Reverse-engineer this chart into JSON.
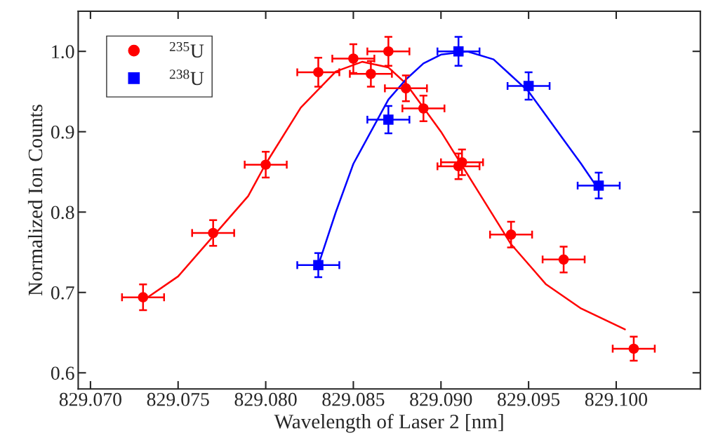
{
  "chart_data": {
    "type": "scatter",
    "xlabel": "Wavelength of Laser 2 [nm]",
    "ylabel": "Normalized Ion Counts",
    "xlim": [
      829.0693,
      829.1048
    ],
    "ylim": [
      0.58,
      1.05
    ],
    "xticks": [
      {
        "value": 829.07,
        "label": "829.070"
      },
      {
        "value": 829.075,
        "label": "829.075"
      },
      {
        "value": 829.08,
        "label": "829.080"
      },
      {
        "value": 829.085,
        "label": "829.085"
      },
      {
        "value": 829.09,
        "label": "829.090"
      },
      {
        "value": 829.095,
        "label": "829.095"
      },
      {
        "value": 829.1,
        "label": "829.100"
      }
    ],
    "yticks": [
      0.6,
      0.7,
      0.8,
      0.9,
      {
        "value": 1.0,
        "label": "1.0"
      }
    ],
    "grid": false,
    "legend": "top left",
    "series": [
      {
        "name": "$^{235}$U",
        "marker": "circle",
        "color": "#ff0000",
        "x": [
          829.073,
          829.077,
          829.08,
          829.083,
          829.085,
          829.086,
          829.087,
          829.088,
          829.089,
          829.091,
          829.0912,
          829.094,
          829.097,
          829.101
        ],
        "values": [
          0.694,
          0.774,
          0.859,
          0.974,
          0.991,
          0.972,
          1.0,
          0.954,
          0.929,
          0.857,
          0.862,
          0.772,
          0.741,
          0.63
        ],
        "errors": [
          0.016,
          0.016,
          0.016,
          0.018,
          0.018,
          0.016,
          0.018,
          0.016,
          0.016,
          0.016,
          0.016,
          0.016,
          0.016,
          0.015
        ],
        "xerrors": [
          0.0012,
          0.0012,
          0.0012,
          0.0012,
          0.0012,
          0.0012,
          0.0012,
          0.0012,
          0.0012,
          0.0012,
          0.0012,
          0.0012,
          0.0012,
          0.0012
        ]
      },
      {
        "name": "$^{238}$U",
        "marker": "square",
        "color": "#0000ff",
        "x": [
          829.083,
          829.087,
          829.091,
          829.095,
          829.099
        ],
        "values": [
          0.734,
          0.915,
          1.0,
          0.957,
          0.833
        ],
        "errors": [
          0.015,
          0.017,
          0.018,
          0.017,
          0.016
        ],
        "xerrors": [
          0.0012,
          0.0012,
          0.0012,
          0.0012,
          0.0012
        ]
      },
      {
        "type": "line",
        "color": "#ff0000",
        "x": [
          829.073,
          829.075,
          829.077,
          829.079,
          829.08,
          829.082,
          829.084,
          829.0855,
          829.087,
          829.088,
          829.09,
          829.092,
          829.094,
          829.096,
          829.098,
          829.1005
        ],
        "values": [
          0.69,
          0.72,
          0.77,
          0.82,
          0.86,
          0.93,
          0.975,
          0.987,
          0.98,
          0.96,
          0.9,
          0.83,
          0.76,
          0.71,
          0.68,
          0.654
        ]
      },
      {
        "type": "line",
        "color": "#0000ff",
        "x": [
          829.083,
          829.084,
          829.085,
          829.086,
          829.087,
          829.088,
          829.089,
          829.09,
          829.0915,
          829.093,
          829.094,
          829.095,
          829.096,
          829.097,
          829.098,
          829.099
        ],
        "values": [
          0.734,
          0.8,
          0.86,
          0.9,
          0.94,
          0.965,
          0.985,
          0.996,
          1.0,
          0.99,
          0.97,
          0.95,
          0.92,
          0.89,
          0.86,
          0.828
        ]
      }
    ]
  }
}
